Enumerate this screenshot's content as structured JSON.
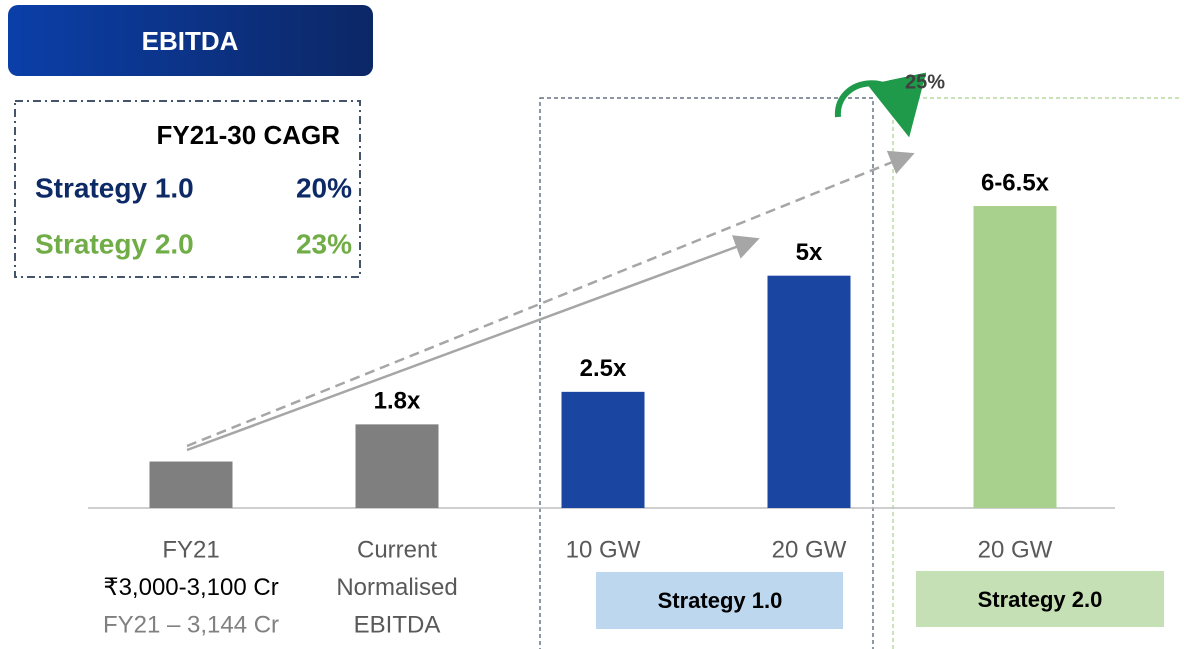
{
  "header": {
    "title": "EBITDA"
  },
  "legend": {
    "title": "FY21-30 CAGR",
    "rows": [
      {
        "name": "Strategy 1.0",
        "value": "20%",
        "color": "#0e2a66"
      },
      {
        "name": "Strategy 2.0",
        "value": "23%",
        "color": "#70ad47"
      }
    ]
  },
  "chart_data": {
    "type": "bar",
    "categories": [
      [
        "FY21",
        "₹3,000-3,100 Cr",
        "FY21 – 3,144 Cr"
      ],
      [
        "Current",
        "Normalised",
        "EBITDA"
      ],
      [
        "10 GW"
      ],
      [
        "20 GW"
      ],
      [
        "20 GW"
      ]
    ],
    "values": [
      1,
      1.8,
      2.5,
      5,
      6.5
    ],
    "value_labels": [
      null,
      "1.8x",
      "2.5x",
      "5x",
      "6-6.5x"
    ],
    "colors": [
      "#7f7f7f",
      "#7f7f7f",
      "#1a45a0",
      "#1a45a0",
      "#a9d18e"
    ],
    "groups": [
      {
        "label": "Strategy 1.0"
      },
      {
        "label": "Strategy 2.0"
      }
    ],
    "annotation": "25%"
  }
}
